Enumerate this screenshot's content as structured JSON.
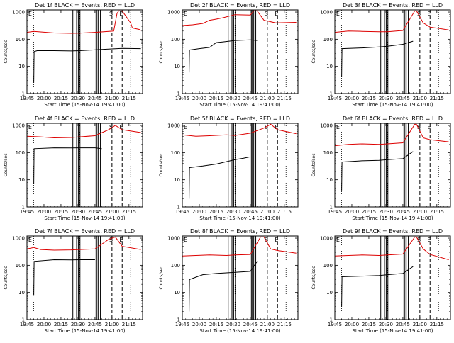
{
  "x_tick_labels": [
    "19:45",
    "20:00",
    "20:15",
    "20:30",
    "20:45",
    "21:00",
    "21:15"
  ],
  "y_tick_labels": [
    "1",
    "10",
    "100",
    "1000"
  ],
  "ylabel": "Counts/sec",
  "xlabel": "Start Time (15-Nov-14 19:41:00)",
  "flags": [
    "E",
    "S",
    "E"
  ],
  "colors": {
    "events": "#000000",
    "lld": "#dd0000",
    "frame": "#000000"
  },
  "chart_data": [
    {
      "type": "line",
      "title": "Det 1f BLACK = Events, RED = LLD",
      "xlim": [
        0,
        34
      ],
      "ylim": [
        1,
        1200
      ],
      "yscale": "log",
      "series": [
        {
          "name": "Events",
          "color": "#000000",
          "x": [
            2.0,
            2.1,
            3.0,
            8.0,
            13.0,
            15.5,
            22.0,
            28.0,
            33.5
          ],
          "y": [
            2.5,
            35,
            38,
            38,
            37,
            38,
            42,
            46,
            45
          ]
        },
        {
          "name": "LLD",
          "color": "#dd0000",
          "x": [
            0.0,
            2.0,
            8.0,
            13.0,
            15.5,
            20.0,
            25.5,
            26.5,
            27.0,
            28.0,
            30.5,
            31.0,
            33.0,
            33.5
          ],
          "y": [
            180,
            195,
            170,
            165,
            168,
            180,
            200,
            900,
            1100,
            1100,
            400,
            260,
            230,
            210
          ]
        }
      ]
    },
    {
      "title": "Det 2f BLACK = Events, RED = LLD",
      "xlim": [
        0,
        34
      ],
      "ylim": [
        1,
        1200
      ],
      "yscale": "log",
      "series": [
        {
          "name": "Events",
          "color": "#000000",
          "x": [
            2.0,
            2.1,
            5.0,
            8.0,
            10.0,
            12.0,
            15.5,
            20.0,
            22.0
          ],
          "y": [
            6,
            40,
            45,
            50,
            75,
            80,
            90,
            95,
            90
          ]
        },
        {
          "name": "LLD",
          "color": "#dd0000",
          "x": [
            0.0,
            3.0,
            6.0,
            8.0,
            10.0,
            12.0,
            15.5,
            20.0,
            21.0,
            22.0,
            24.0,
            27.5,
            33.5
          ],
          "y": [
            320,
            340,
            380,
            500,
            550,
            620,
            800,
            780,
            1100,
            1100,
            500,
            400,
            420
          ]
        }
      ]
    },
    {
      "title": "Det 3f BLACK = Events, RED = LLD",
      "xlim": [
        0,
        34
      ],
      "ylim": [
        1,
        1200
      ],
      "yscale": "log",
      "series": [
        {
          "name": "Events",
          "color": "#000000",
          "x": [
            2.0,
            2.1,
            8.0,
            13.0,
            15.5,
            20.0,
            23.0
          ],
          "y": [
            4,
            45,
            48,
            52,
            55,
            65,
            85
          ]
        },
        {
          "name": "LLD",
          "color": "#dd0000",
          "x": [
            0.0,
            4.0,
            8.0,
            13.0,
            15.5,
            20.0,
            23.5,
            24.0,
            26.0,
            28.0,
            33.5
          ],
          "y": [
            180,
            200,
            195,
            190,
            190,
            210,
            1100,
            1100,
            400,
            280,
            220
          ]
        }
      ]
    },
    {
      "title": "Det 4f BLACK = Events, RED = LLD",
      "xlim": [
        0,
        34
      ],
      "ylim": [
        1,
        1200
      ],
      "yscale": "log",
      "series": [
        {
          "name": "Events",
          "color": "#000000",
          "x": [
            2.0,
            2.1,
            8.0,
            13.0,
            15.5,
            20.0,
            22.0
          ],
          "y": [
            7,
            140,
            150,
            148,
            150,
            150,
            140
          ]
        },
        {
          "name": "LLD",
          "color": "#dd0000",
          "x": [
            0.0,
            4.0,
            8.0,
            13.0,
            15.5,
            20.0,
            24.0,
            26.0,
            28.0,
            33.5
          ],
          "y": [
            400,
            380,
            350,
            360,
            380,
            420,
            700,
            1000,
            700,
            550
          ]
        }
      ]
    },
    {
      "title": "Det 5f BLACK = Events, RED = LLD",
      "xlim": [
        0,
        34
      ],
      "ylim": [
        1,
        1200
      ],
      "yscale": "log",
      "series": [
        {
          "name": "Events",
          "color": "#000000",
          "x": [
            2.0,
            2.1,
            6.0,
            10.0,
            15.5,
            18.0,
            20.0
          ],
          "y": [
            2,
            28,
            32,
            38,
            55,
            62,
            70
          ]
        },
        {
          "name": "LLD",
          "color": "#dd0000",
          "x": [
            0.0,
            4.0,
            8.0,
            13.0,
            15.5,
            20.0,
            24.0,
            26.0,
            28.0,
            33.5
          ],
          "y": [
            450,
            400,
            420,
            450,
            430,
            520,
            800,
            1100,
            700,
            500
          ]
        }
      ]
    },
    {
      "title": "Det 6f BLACK = Events, RED = LLD",
      "xlim": [
        0,
        34
      ],
      "ylim": [
        1,
        1200
      ],
      "yscale": "log",
      "series": [
        {
          "name": "Events",
          "color": "#000000",
          "x": [
            2.0,
            2.1,
            8.0,
            13.0,
            15.5,
            20.0,
            23.0
          ],
          "y": [
            4,
            45,
            50,
            52,
            55,
            60,
            110
          ]
        },
        {
          "name": "LLD",
          "color": "#dd0000",
          "x": [
            0.0,
            4.0,
            8.0,
            13.0,
            15.5,
            20.0,
            23.5,
            24.0,
            26.0,
            28.0,
            33.5
          ],
          "y": [
            180,
            200,
            210,
            200,
            210,
            230,
            1100,
            1100,
            350,
            300,
            250
          ]
        }
      ]
    },
    {
      "title": "Det 7f BLACK = Events, RED = LLD",
      "xlim": [
        0,
        34
      ],
      "ylim": [
        1,
        1200
      ],
      "yscale": "log",
      "series": [
        {
          "name": "Events",
          "color": "#000000",
          "x": [
            2.0,
            2.1,
            8.0,
            13.0,
            15.5,
            20.0
          ],
          "y": [
            8,
            140,
            160,
            158,
            160,
            160
          ]
        },
        {
          "name": "LLD",
          "color": "#dd0000",
          "x": [
            0.0,
            2.0,
            4.0,
            8.0,
            13.0,
            15.5,
            20.0,
            24.0,
            26.0,
            28.0,
            33.5
          ],
          "y": [
            400,
            450,
            380,
            360,
            370,
            380,
            400,
            900,
            1100,
            500,
            380
          ]
        }
      ]
    },
    {
      "title": "Det 8f BLACK = Events, RED = LLD",
      "xlim": [
        0,
        34
      ],
      "ylim": [
        1,
        1200
      ],
      "yscale": "log",
      "series": [
        {
          "name": "Events",
          "color": "#000000",
          "x": [
            2.0,
            2.1,
            6.0,
            10.0,
            15.5,
            20.0,
            22.0
          ],
          "y": [
            2,
            30,
            45,
            50,
            55,
            60,
            140
          ]
        },
        {
          "name": "LLD",
          "color": "#dd0000",
          "x": [
            0.0,
            4.0,
            8.0,
            13.0,
            15.5,
            20.0,
            23.0,
            24.0,
            26.0,
            28.0,
            33.5
          ],
          "y": [
            220,
            230,
            240,
            230,
            240,
            250,
            1100,
            1100,
            400,
            350,
            280
          ]
        }
      ]
    },
    {
      "title": "Det 9f BLACK = Events, RED = LLD",
      "xlim": [
        0,
        34
      ],
      "ylim": [
        1,
        1200
      ],
      "yscale": "log",
      "series": [
        {
          "name": "Events",
          "color": "#000000",
          "x": [
            2.0,
            2.1,
            8.0,
            13.0,
            15.5,
            20.0,
            23.0
          ],
          "y": [
            3,
            38,
            40,
            42,
            45,
            50,
            90
          ]
        },
        {
          "name": "LLD",
          "color": "#dd0000",
          "x": [
            0.0,
            4.0,
            8.0,
            13.0,
            15.5,
            20.0,
            23.5,
            24.0,
            26.0,
            28.0,
            33.5
          ],
          "y": [
            220,
            230,
            240,
            230,
            240,
            260,
            1100,
            1100,
            400,
            250,
            160
          ]
        }
      ]
    }
  ]
}
